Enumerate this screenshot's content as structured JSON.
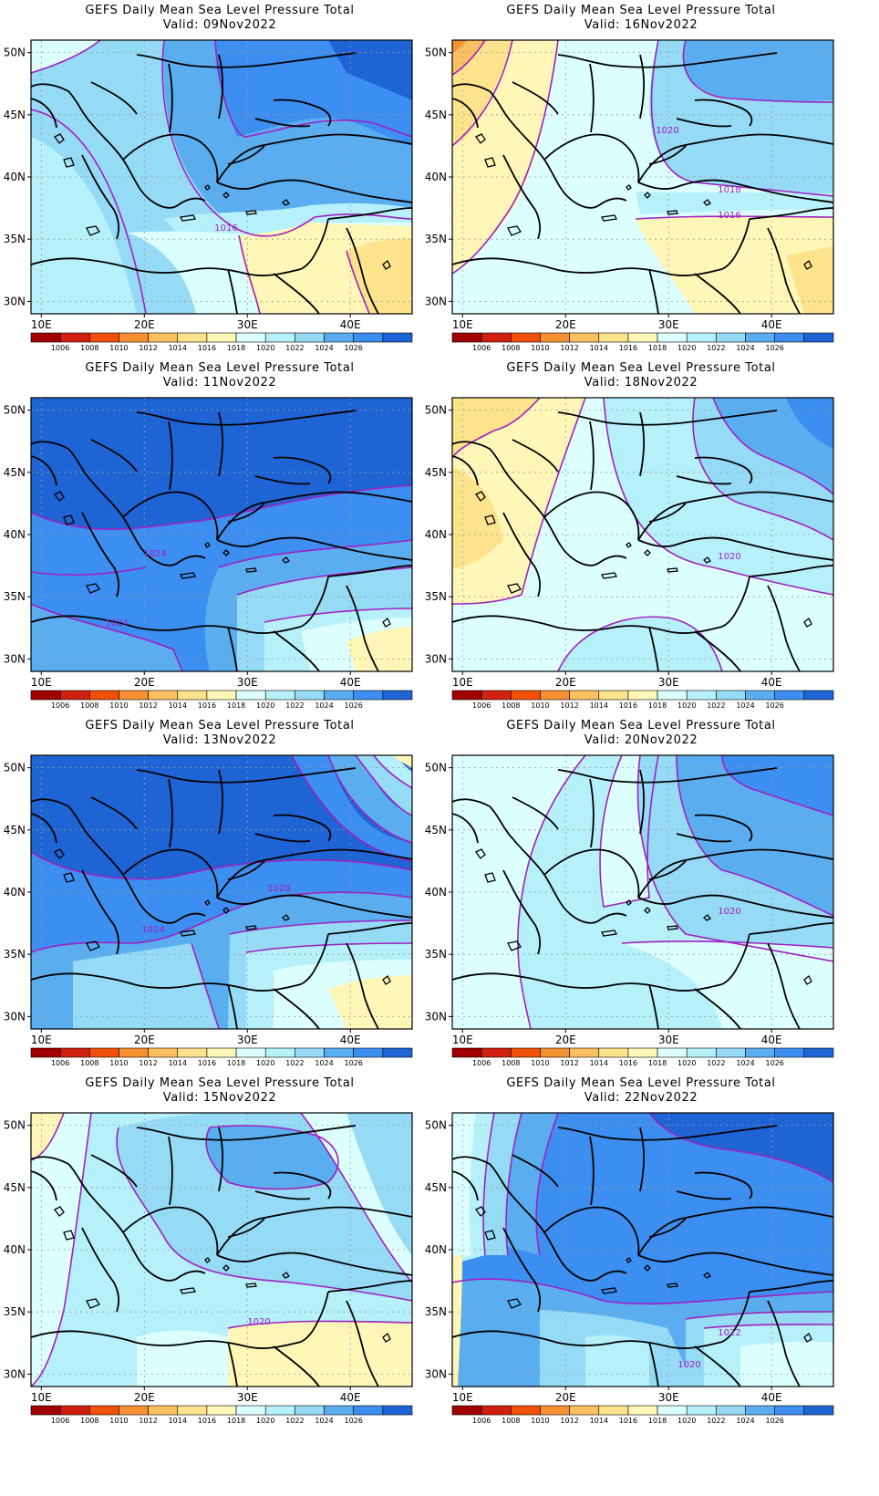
{
  "title_line1": "GEFS Daily Mean Sea Level Pressure Total",
  "valid_prefix": "Valid:",
  "lat_ticks": [
    "50N",
    "45N",
    "40N",
    "35N",
    "30N"
  ],
  "lon_ticks": [
    "10E",
    "20E",
    "30E",
    "40E"
  ],
  "colorbar": {
    "colors": [
      "#a00000",
      "#d22010",
      "#f05008",
      "#f79030",
      "#fbc060",
      "#fde38c",
      "#fff6b8",
      "#dcffff",
      "#b6f0fb",
      "#96dbf6",
      "#5aaef0",
      "#3c8ef0",
      "#1e64d4"
    ],
    "labels": [
      "1006",
      "1008",
      "1010",
      "1012",
      "1014",
      "1016",
      "1018",
      "1020",
      "1022",
      "1024",
      "1026"
    ]
  },
  "panels": [
    {
      "id": "p1",
      "valid": "09Nov2022",
      "labels": [
        {
          "text": "1016"
        }
      ]
    },
    {
      "id": "p2",
      "valid": "16Nov2022",
      "labels": [
        {
          "text": "1020"
        },
        {
          "text": "1018"
        },
        {
          "text": "1016"
        }
      ]
    },
    {
      "id": "p3",
      "valid": "11Nov2022",
      "labels": [
        {
          "text": "1024"
        },
        {
          "text": "1024"
        }
      ]
    },
    {
      "id": "p4",
      "valid": "18Nov2022",
      "labels": [
        {
          "text": "1020"
        }
      ]
    },
    {
      "id": "p5",
      "valid": "13Nov2022",
      "labels": [
        {
          "text": "1028"
        },
        {
          "text": "1024"
        }
      ]
    },
    {
      "id": "p6",
      "valid": "20Nov2022",
      "labels": [
        {
          "text": "1020"
        }
      ]
    },
    {
      "id": "p7",
      "valid": "15Nov2022",
      "labels": [
        {
          "text": "1020"
        }
      ]
    },
    {
      "id": "p8",
      "valid": "22Nov2022",
      "labels": [
        {
          "text": "1022"
        },
        {
          "text": "1020"
        }
      ]
    }
  ]
}
